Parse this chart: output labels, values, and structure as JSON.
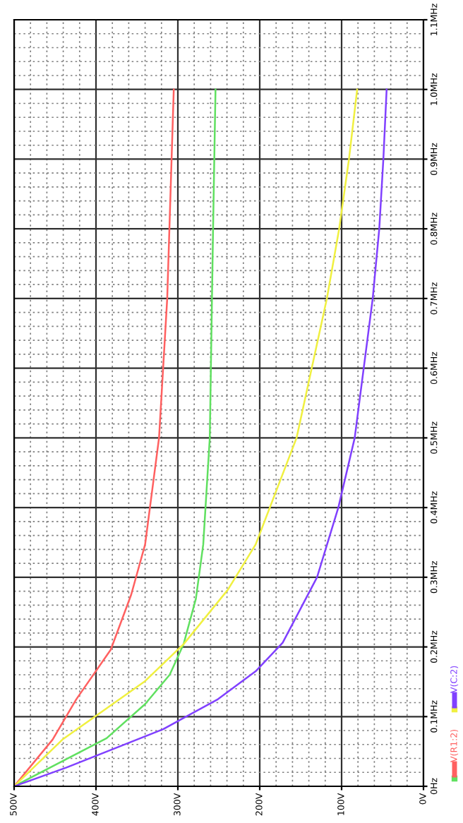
{
  "chart_data": {
    "type": "line",
    "xlim": [
      500,
      0
    ],
    "ylim": [
      0,
      1.1
    ],
    "xticks": [
      {
        "value": 500,
        "label": "500V"
      },
      {
        "value": 400,
        "label": "400V"
      },
      {
        "value": 300,
        "label": "300V"
      },
      {
        "value": 200,
        "label": "200V"
      },
      {
        "value": 100,
        "label": "100V"
      },
      {
        "value": 0,
        "label": "0V"
      }
    ],
    "yticks": [
      {
        "value": 0,
        "label": "0Hz"
      },
      {
        "value": 0.1,
        "label": "0.1MHz"
      },
      {
        "value": 0.2,
        "label": "0.2MHz"
      },
      {
        "value": 0.3,
        "label": "0.3MHz"
      },
      {
        "value": 0.4,
        "label": "0.4MHz"
      },
      {
        "value": 0.5,
        "label": "0.5MHz"
      },
      {
        "value": 0.6,
        "label": "0.6MHz"
      },
      {
        "value": 0.7,
        "label": "0.7MHz"
      },
      {
        "value": 0.8,
        "label": "0.8MHz"
      },
      {
        "value": 0.9,
        "label": "0.9MHz"
      },
      {
        "value": 1.0,
        "label": "1.0MHz"
      },
      {
        "value": 1.1,
        "label": "1.1MHz"
      }
    ],
    "grid": true,
    "legend": "bottom right",
    "marker": "none",
    "line_style": "solid",
    "series": [
      {
        "color": "#60e060",
        "x": [
          500,
          387,
          340,
          310,
          293,
          278,
          269,
          261,
          257,
          254
        ],
        "values": [
          0,
          0.069,
          0.118,
          0.16,
          0.204,
          0.269,
          0.347,
          0.5,
          0.8,
          1.0
        ]
      },
      {
        "name": "V(R1:2)",
        "color": "#ff6060",
        "x": [
          500,
          453,
          424,
          382,
          357,
          340,
          323,
          313,
          305
        ],
        "values": [
          0,
          0.067,
          0.125,
          0.196,
          0.275,
          0.347,
          0.5,
          0.7,
          1.0
        ]
      },
      {
        "color": "#f0f040",
        "x": [
          500,
          441,
          340,
          293,
          239,
          205,
          155,
          118,
          103,
          91,
          81
        ],
        "values": [
          0,
          0.067,
          0.151,
          0.204,
          0.282,
          0.347,
          0.5,
          0.7,
          0.8,
          0.9,
          1.0
        ]
      },
      {
        "name": "V(C:2)",
        "color": "#8040ff",
        "x": [
          500,
          436,
          318,
          251,
          205,
          172,
          130,
          104,
          84,
          62,
          54,
          49,
          45
        ],
        "values": [
          0,
          0.027,
          0.082,
          0.125,
          0.165,
          0.206,
          0.3,
          0.4,
          0.5,
          0.7,
          0.8,
          0.9,
          1.0
        ]
      }
    ]
  }
}
